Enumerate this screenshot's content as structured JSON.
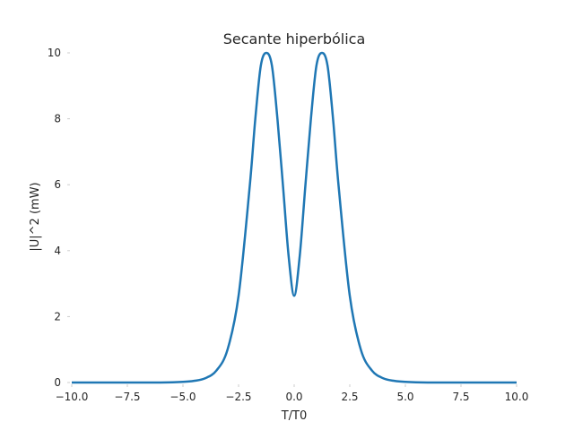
{
  "chart_data": {
    "type": "line",
    "title": "Secante hiperbólica",
    "xlabel": "T/T0",
    "ylabel": "|U|^2 (mW)",
    "xlim": [
      -10,
      10
    ],
    "ylim": [
      0,
      10
    ],
    "x_ticks": [
      "−10.0",
      "−7.5",
      "−5.0",
      "−2.5",
      "0.0",
      "2.5",
      "5.0",
      "7.5",
      "10.0"
    ],
    "y_ticks": [
      "0",
      "2",
      "4",
      "6",
      "8",
      "10"
    ],
    "grid": false,
    "series": [
      {
        "color": "#1f77b4",
        "x": [
          -10,
          -9,
          -8,
          -7,
          -6,
          -5,
          -4.5,
          -4,
          -3.5,
          -3,
          -2.5,
          -2,
          -1.75,
          -1.5,
          -1.25,
          -1,
          -0.75,
          -0.5,
          -0.25,
          0,
          0.25,
          0.5,
          0.75,
          1,
          1.25,
          1.5,
          1.75,
          2,
          2.5,
          3,
          3.5,
          4,
          4.5,
          5,
          6,
          7,
          8,
          9,
          10
        ],
        "y": [
          0.0,
          0.0,
          0.0,
          0.0,
          0.0,
          0.02,
          0.05,
          0.13,
          0.36,
          0.99,
          2.63,
          5.94,
          7.98,
          9.61,
          10.0,
          9.61,
          7.98,
          5.94,
          3.84,
          2.63,
          3.84,
          5.94,
          7.98,
          9.61,
          10.0,
          9.61,
          7.98,
          5.94,
          2.63,
          0.99,
          0.36,
          0.13,
          0.05,
          0.02,
          0.0,
          0.0,
          0.0,
          0.0,
          0.0
        ]
      }
    ]
  }
}
